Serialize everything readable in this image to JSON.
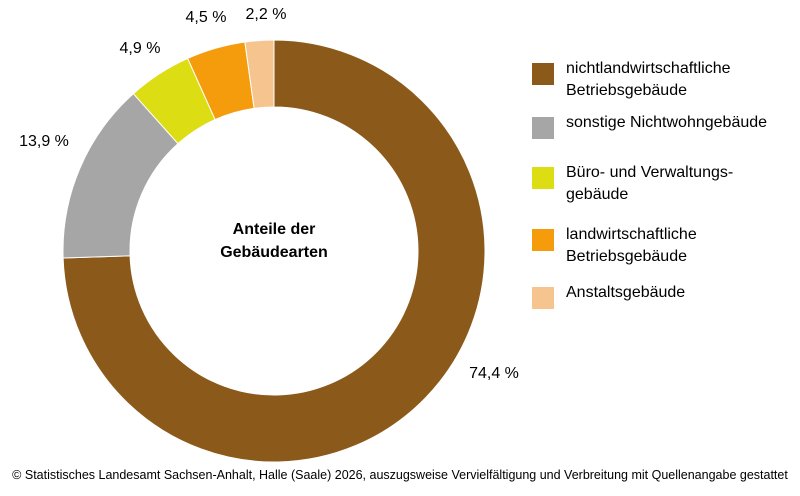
{
  "chart_data": {
    "type": "pie",
    "donut": true,
    "center_label": "Anteile der\nGebäudearten",
    "slices": [
      {
        "name": "nichtlandwirtschaftliche\nBetriebsgebäude",
        "value": 74.4,
        "label": "74,4 %",
        "color": "#8B5A1B"
      },
      {
        "name": "sonstige Nichtwohngebäude",
        "value": 13.9,
        "label": "13,9 %",
        "color": "#A6A6A6"
      },
      {
        "name": "Büro- und Verwaltungs-\ngebäude",
        "value": 4.9,
        "label": "4,9 %",
        "color": "#DDDD14"
      },
      {
        "name": "landwirtschaftliche\nBetriebsgebäude",
        "value": 4.5,
        "label": "4,5  %",
        "color": "#F59C0C"
      },
      {
        "name": "Anstaltsgebäude",
        "value": 2.2,
        "label": "2,2 %",
        "color": "#F6C48E"
      }
    ],
    "legend_position": "right"
  },
  "footer": {
    "copyright": "© Statistisches Landesamt Sachsen-Anhalt, Halle (Saale) 2026, auszugsweise Vervielfältigung und Verbreitung mit Quellenangabe gestattet"
  }
}
